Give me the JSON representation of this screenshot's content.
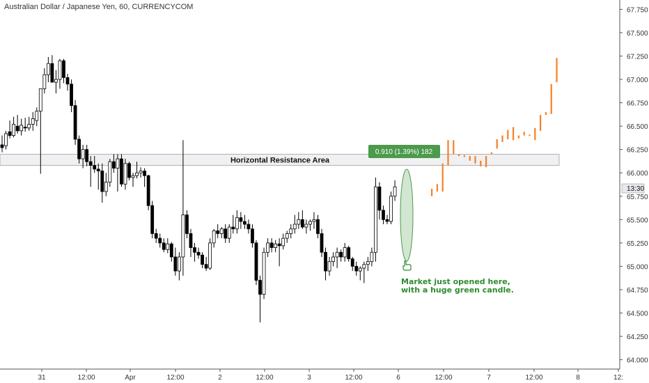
{
  "chart_data": {
    "type": "candlestick",
    "title": "Australian Dollar / Japanese Yen, 60, CURRENCYCOM",
    "ylim": [
      63.9,
      67.85
    ],
    "y_ticks": [
      "67.750",
      "67.500",
      "67.250",
      "67.000",
      "66.750",
      "66.500",
      "66.250",
      "66.000",
      "65.750",
      "65.500",
      "65.250",
      "65.000",
      "64.750",
      "64.500",
      "64.250",
      "64.000"
    ],
    "x_ticks": [
      "31",
      "12:00",
      "Apr",
      "12:00",
      "2",
      "12:00",
      "3",
      "12:00",
      "6",
      "12:00",
      "7",
      "12:00",
      "8",
      "12:"
    ],
    "current_price_label": "13:30",
    "resistance_zone": {
      "label": "Horizontal Resistance Area",
      "low": 66.08,
      "high": 66.2
    },
    "measure_box": {
      "label": "0.910 (1.39%) 182"
    },
    "annotation": {
      "lines": [
        "Market just opened here,",
        "with a huge green candle."
      ]
    },
    "colors": {
      "bull": "#ffffff",
      "bear": "#000000",
      "projection": "#f58025",
      "note": "#2e8b2e",
      "zone_fill": "#f0f0f2",
      "measure_fill": "#4c9a4c"
    },
    "candles": [
      {
        "o": 66.3,
        "h": 66.4,
        "l": 66.22,
        "c": 66.27
      },
      {
        "o": 66.29,
        "h": 66.45,
        "l": 66.25,
        "c": 66.42
      },
      {
        "o": 66.44,
        "h": 66.56,
        "l": 66.37,
        "c": 66.4
      },
      {
        "o": 66.4,
        "h": 66.6,
        "l": 66.38,
        "c": 66.52
      },
      {
        "o": 66.5,
        "h": 66.62,
        "l": 66.42,
        "c": 66.45
      },
      {
        "o": 66.45,
        "h": 66.58,
        "l": 66.4,
        "c": 66.51
      },
      {
        "o": 66.49,
        "h": 66.59,
        "l": 66.44,
        "c": 66.48
      },
      {
        "o": 66.48,
        "h": 66.6,
        "l": 66.45,
        "c": 66.52
      },
      {
        "o": 66.52,
        "h": 66.65,
        "l": 66.45,
        "c": 66.58
      },
      {
        "o": 66.56,
        "h": 66.7,
        "l": 66.5,
        "c": 66.66
      },
      {
        "o": 66.66,
        "h": 66.9,
        "l": 65.99,
        "c": 66.9
      },
      {
        "o": 66.9,
        "h": 67.12,
        "l": 66.85,
        "c": 67.05
      },
      {
        "o": 67.05,
        "h": 67.24,
        "l": 66.97,
        "c": 67.17
      },
      {
        "o": 67.17,
        "h": 67.26,
        "l": 67.0,
        "c": 66.97
      },
      {
        "o": 66.97,
        "h": 67.1,
        "l": 66.85,
        "c": 67.0
      },
      {
        "o": 67.0,
        "h": 67.22,
        "l": 66.9,
        "c": 67.2
      },
      {
        "o": 67.2,
        "h": 67.22,
        "l": 66.96,
        "c": 67.02
      },
      {
        "o": 67.02,
        "h": 67.06,
        "l": 66.88,
        "c": 66.95
      },
      {
        "o": 66.95,
        "h": 67.0,
        "l": 66.65,
        "c": 66.72
      },
      {
        "o": 66.72,
        "h": 66.78,
        "l": 66.3,
        "c": 66.36
      },
      {
        "o": 66.36,
        "h": 66.4,
        "l": 66.1,
        "c": 66.15
      },
      {
        "o": 66.15,
        "h": 66.3,
        "l": 66.05,
        "c": 66.25
      },
      {
        "o": 66.25,
        "h": 66.3,
        "l": 66.07,
        "c": 66.12
      },
      {
        "o": 66.12,
        "h": 66.18,
        "l": 65.85,
        "c": 66.08
      },
      {
        "o": 66.08,
        "h": 66.18,
        "l": 66.0,
        "c": 66.04
      },
      {
        "o": 66.04,
        "h": 66.1,
        "l": 65.82,
        "c": 66.02
      },
      {
        "o": 66.02,
        "h": 66.1,
        "l": 65.68,
        "c": 65.8
      },
      {
        "o": 65.8,
        "h": 66.0,
        "l": 65.75,
        "c": 65.9
      },
      {
        "o": 65.9,
        "h": 66.15,
        "l": 65.85,
        "c": 66.12
      },
      {
        "o": 66.12,
        "h": 66.2,
        "l": 66.0,
        "c": 66.05
      },
      {
        "o": 66.05,
        "h": 66.2,
        "l": 65.8,
        "c": 66.15
      },
      {
        "o": 66.15,
        "h": 66.2,
        "l": 65.85,
        "c": 65.88
      },
      {
        "o": 65.88,
        "h": 66.15,
        "l": 65.82,
        "c": 66.1
      },
      {
        "o": 66.1,
        "h": 66.12,
        "l": 65.92,
        "c": 65.95
      },
      {
        "o": 65.95,
        "h": 66.0,
        "l": 65.85,
        "c": 65.97
      },
      {
        "o": 65.97,
        "h": 66.12,
        "l": 65.94,
        "c": 66.0
      },
      {
        "o": 66.0,
        "h": 66.06,
        "l": 65.95,
        "c": 66.02
      },
      {
        "o": 66.02,
        "h": 66.05,
        "l": 65.85,
        "c": 65.97
      },
      {
        "o": 65.97,
        "h": 65.98,
        "l": 65.6,
        "c": 65.65
      },
      {
        "o": 65.65,
        "h": 65.7,
        "l": 65.3,
        "c": 65.35
      },
      {
        "o": 65.35,
        "h": 65.4,
        "l": 65.25,
        "c": 65.3
      },
      {
        "o": 65.3,
        "h": 65.35,
        "l": 65.2,
        "c": 65.25
      },
      {
        "o": 65.25,
        "h": 65.3,
        "l": 65.15,
        "c": 65.18
      },
      {
        "o": 65.18,
        "h": 65.3,
        "l": 65.14,
        "c": 65.24
      },
      {
        "o": 65.24,
        "h": 65.26,
        "l": 65.05,
        "c": 65.1
      },
      {
        "o": 65.1,
        "h": 65.2,
        "l": 64.9,
        "c": 64.95
      },
      {
        "o": 64.95,
        "h": 65.15,
        "l": 64.85,
        "c": 65.1
      },
      {
        "o": 65.1,
        "h": 66.35,
        "l": 64.9,
        "c": 65.55
      },
      {
        "o": 65.55,
        "h": 65.6,
        "l": 65.3,
        "c": 65.35
      },
      {
        "o": 65.35,
        "h": 65.4,
        "l": 65.1,
        "c": 65.2
      },
      {
        "o": 65.2,
        "h": 65.25,
        "l": 65.05,
        "c": 65.15
      },
      {
        "o": 65.15,
        "h": 65.2,
        "l": 65.08,
        "c": 65.12
      },
      {
        "o": 65.12,
        "h": 65.15,
        "l": 64.98,
        "c": 65.02
      },
      {
        "o": 65.02,
        "h": 65.1,
        "l": 64.95,
        "c": 64.98
      },
      {
        "o": 64.98,
        "h": 65.3,
        "l": 64.96,
        "c": 65.25
      },
      {
        "o": 65.25,
        "h": 65.4,
        "l": 65.2,
        "c": 65.38
      },
      {
        "o": 65.38,
        "h": 65.45,
        "l": 65.3,
        "c": 65.35
      },
      {
        "o": 65.35,
        "h": 65.42,
        "l": 65.3,
        "c": 65.4
      },
      {
        "o": 65.4,
        "h": 65.45,
        "l": 65.25,
        "c": 65.3
      },
      {
        "o": 65.3,
        "h": 65.45,
        "l": 65.25,
        "c": 65.42
      },
      {
        "o": 65.42,
        "h": 65.55,
        "l": 65.35,
        "c": 65.4
      },
      {
        "o": 65.4,
        "h": 65.6,
        "l": 65.35,
        "c": 65.52
      },
      {
        "o": 65.52,
        "h": 65.58,
        "l": 65.4,
        "c": 65.48
      },
      {
        "o": 65.48,
        "h": 65.55,
        "l": 65.4,
        "c": 65.45
      },
      {
        "o": 65.45,
        "h": 65.5,
        "l": 65.35,
        "c": 65.4
      },
      {
        "o": 65.4,
        "h": 65.45,
        "l": 65.2,
        "c": 65.25
      },
      {
        "o": 65.25,
        "h": 65.28,
        "l": 64.8,
        "c": 64.85
      },
      {
        "o": 64.85,
        "h": 64.9,
        "l": 64.4,
        "c": 64.7
      },
      {
        "o": 64.7,
        "h": 65.2,
        "l": 64.65,
        "c": 65.15
      },
      {
        "o": 65.15,
        "h": 65.3,
        "l": 65.1,
        "c": 65.25
      },
      {
        "o": 65.25,
        "h": 65.3,
        "l": 65.15,
        "c": 65.2
      },
      {
        "o": 65.2,
        "h": 65.28,
        "l": 65.15,
        "c": 65.24
      },
      {
        "o": 65.24,
        "h": 65.3,
        "l": 65.0,
        "c": 65.22
      },
      {
        "o": 65.22,
        "h": 65.35,
        "l": 65.18,
        "c": 65.3
      },
      {
        "o": 65.3,
        "h": 65.38,
        "l": 65.25,
        "c": 65.35
      },
      {
        "o": 65.35,
        "h": 65.45,
        "l": 65.3,
        "c": 65.4
      },
      {
        "o": 65.4,
        "h": 65.55,
        "l": 65.35,
        "c": 65.45
      },
      {
        "o": 65.45,
        "h": 65.58,
        "l": 65.4,
        "c": 65.5
      },
      {
        "o": 65.5,
        "h": 65.6,
        "l": 65.4,
        "c": 65.42
      },
      {
        "o": 65.42,
        "h": 65.5,
        "l": 65.35,
        "c": 65.45
      },
      {
        "o": 65.45,
        "h": 65.5,
        "l": 65.38,
        "c": 65.48
      },
      {
        "o": 65.48,
        "h": 65.58,
        "l": 65.4,
        "c": 65.5
      },
      {
        "o": 65.5,
        "h": 65.55,
        "l": 65.3,
        "c": 65.35
      },
      {
        "o": 65.35,
        "h": 65.4,
        "l": 65.1,
        "c": 65.15
      },
      {
        "o": 65.15,
        "h": 65.2,
        "l": 64.85,
        "c": 64.95
      },
      {
        "o": 64.95,
        "h": 65.1,
        "l": 64.9,
        "c": 65.05
      },
      {
        "o": 65.05,
        "h": 65.15,
        "l": 65.0,
        "c": 65.1
      },
      {
        "o": 65.1,
        "h": 65.2,
        "l": 64.98,
        "c": 65.15
      },
      {
        "o": 65.15,
        "h": 65.18,
        "l": 65.05,
        "c": 65.1
      },
      {
        "o": 65.1,
        "h": 65.25,
        "l": 65.05,
        "c": 65.2
      },
      {
        "o": 65.2,
        "h": 65.22,
        "l": 65.05,
        "c": 65.08
      },
      {
        "o": 65.08,
        "h": 65.1,
        "l": 64.95,
        "c": 65.0
      },
      {
        "o": 65.0,
        "h": 65.05,
        "l": 64.9,
        "c": 64.95
      },
      {
        "o": 64.95,
        "h": 65.0,
        "l": 64.85,
        "c": 64.98
      },
      {
        "o": 64.98,
        "h": 65.05,
        "l": 64.82,
        "c": 65.02
      },
      {
        "o": 65.02,
        "h": 65.1,
        "l": 64.95,
        "c": 65.05
      },
      {
        "o": 65.05,
        "h": 65.2,
        "l": 65.0,
        "c": 65.15
      },
      {
        "o": 65.15,
        "h": 65.95,
        "l": 65.05,
        "c": 65.85
      },
      {
        "o": 65.85,
        "h": 65.9,
        "l": 65.5,
        "c": 65.6
      },
      {
        "o": 65.6,
        "h": 65.65,
        "l": 65.45,
        "c": 65.5
      },
      {
        "o": 65.5,
        "h": 65.55,
        "l": 65.45,
        "c": 65.48
      },
      {
        "o": 65.48,
        "h": 65.8,
        "l": 65.45,
        "c": 65.75
      },
      {
        "o": 65.75,
        "h": 65.92,
        "l": 65.7,
        "c": 65.85
      }
    ],
    "projection": [
      {
        "h": 65.83,
        "l": 65.75
      },
      {
        "h": 65.88,
        "l": 65.8
      },
      {
        "h": 66.1,
        "l": 65.8
      },
      {
        "h": 66.35,
        "l": 66.08
      },
      {
        "h": 66.35,
        "l": 66.2
      },
      {
        "h": 66.2,
        "l": 66.18
      },
      {
        "h": 66.19,
        "l": 66.17
      },
      {
        "h": 66.18,
        "l": 66.13
      },
      {
        "h": 66.18,
        "l": 66.1
      },
      {
        "h": 66.13,
        "l": 66.07
      },
      {
        "h": 66.18,
        "l": 66.06
      },
      {
        "h": 66.22,
        "l": 66.2
      },
      {
        "h": 66.36,
        "l": 66.26
      },
      {
        "h": 66.4,
        "l": 66.33
      },
      {
        "h": 66.46,
        "l": 66.36
      },
      {
        "h": 66.49,
        "l": 66.35
      },
      {
        "h": 66.4,
        "l": 66.37
      },
      {
        "h": 66.44,
        "l": 66.4
      },
      {
        "h": 66.41,
        "l": 66.4
      },
      {
        "h": 66.48,
        "l": 66.35
      },
      {
        "h": 66.62,
        "l": 66.45
      },
      {
        "h": 66.65,
        "l": 66.62
      },
      {
        "h": 66.95,
        "l": 66.63
      },
      {
        "h": 67.23,
        "l": 66.97
      }
    ]
  }
}
